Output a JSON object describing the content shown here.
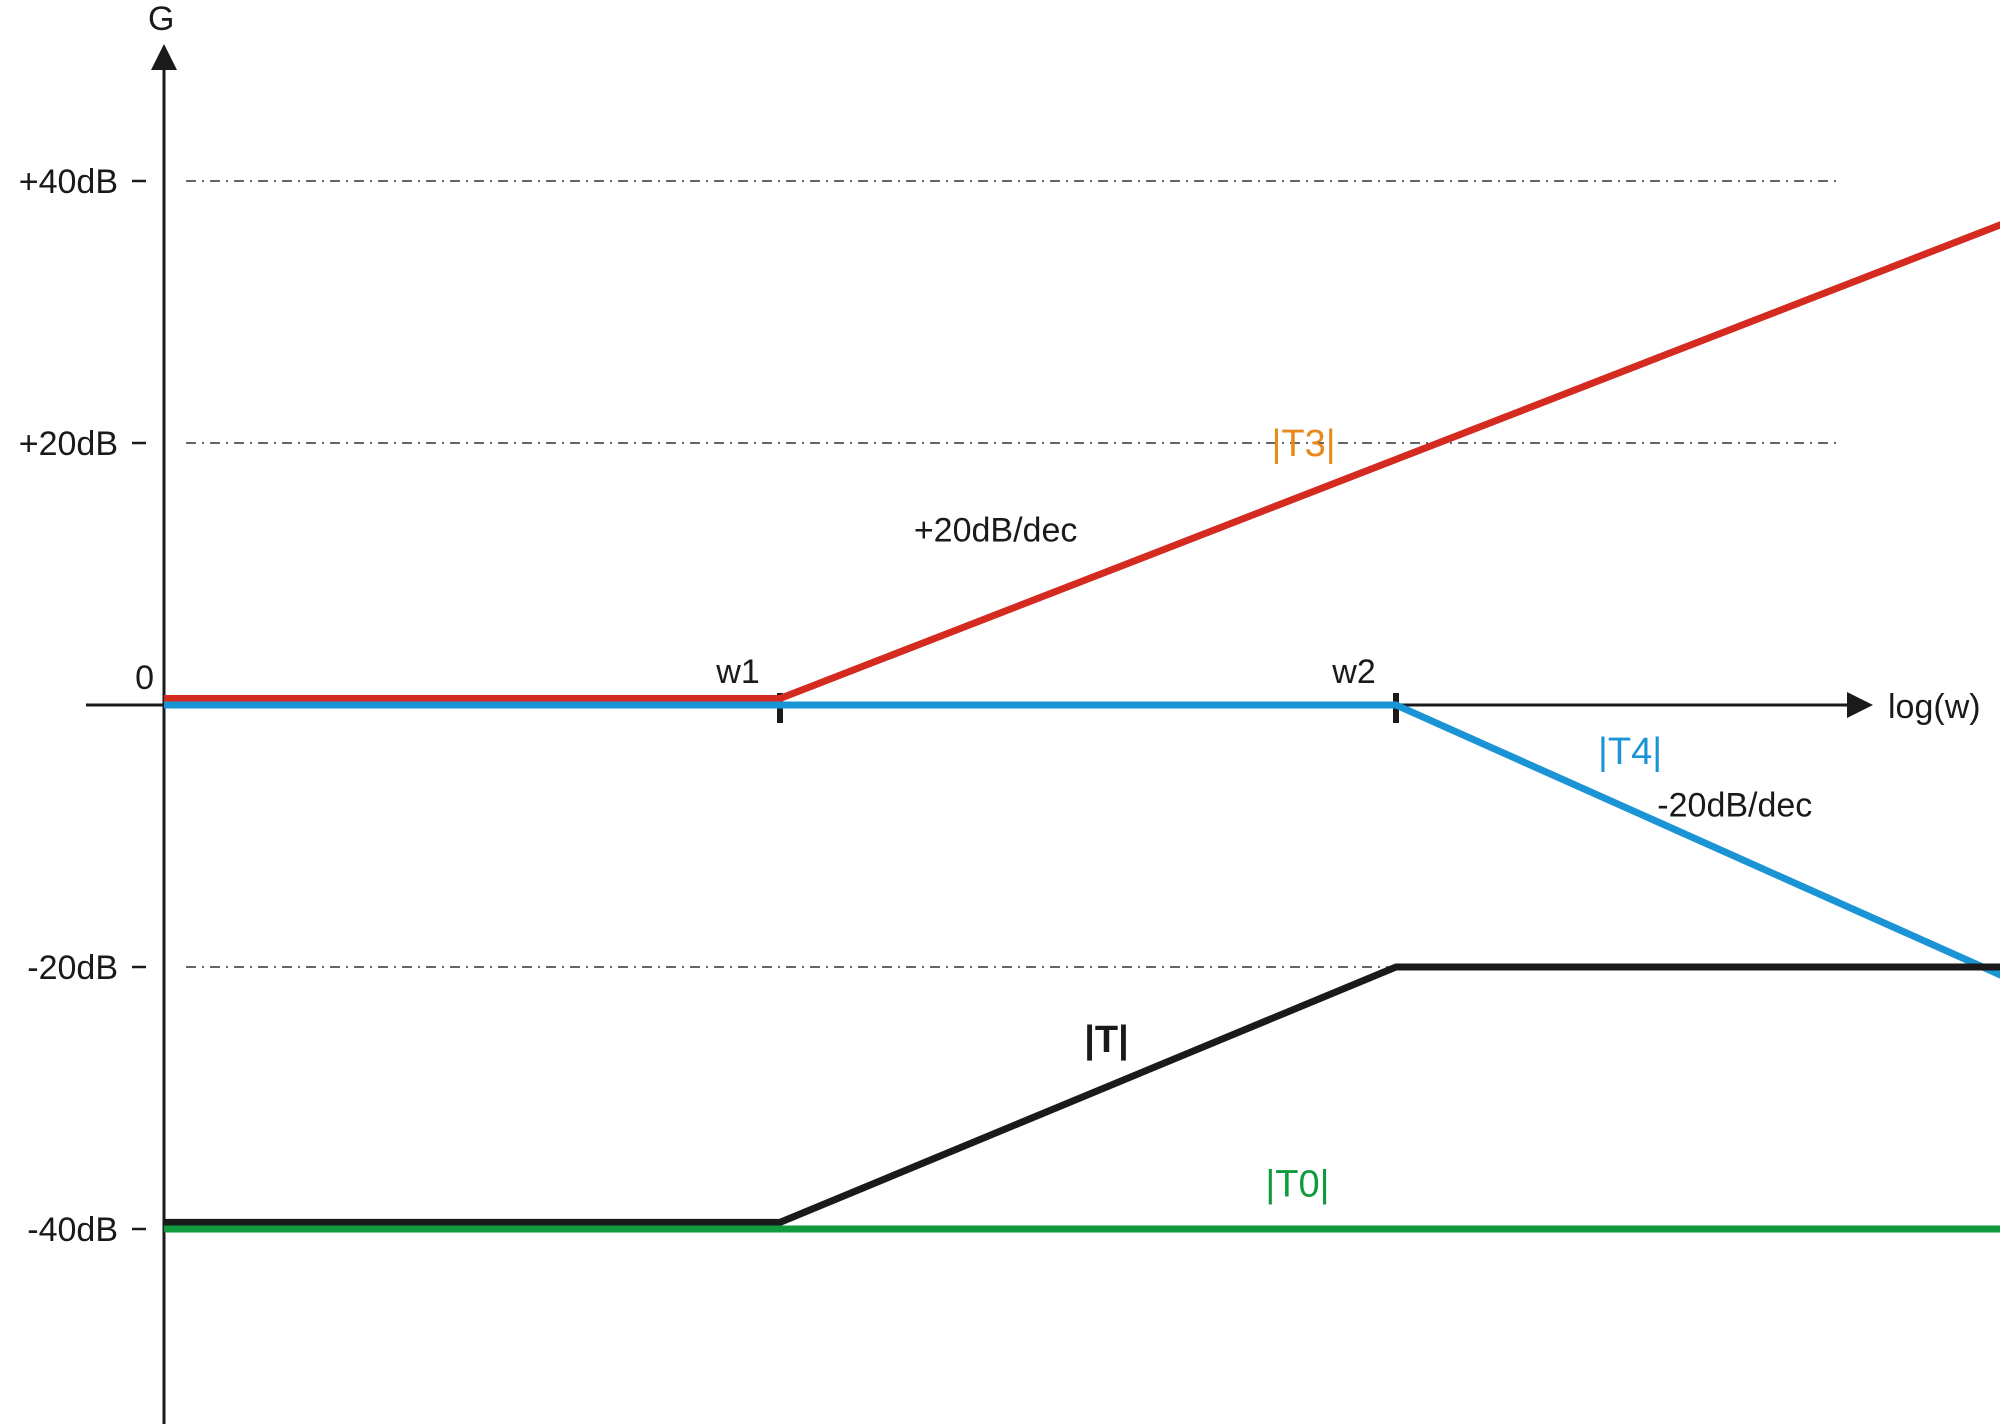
{
  "chart_data": {
    "type": "line",
    "title": "",
    "xlabel": "log(w)",
    "ylabel": "G",
    "xlim": [
      0,
      3.2
    ],
    "ylim": [
      -53,
      48
    ],
    "grid": "dash-dot at labeled levels",
    "yticks": [
      {
        "value": 40,
        "label": "+40dB"
      },
      {
        "value": 20,
        "label": "+20dB"
      },
      {
        "value": 0,
        "label": "0"
      },
      {
        "value": -20,
        "label": "-20dB"
      },
      {
        "value": -40,
        "label": "-40dB"
      }
    ],
    "gridlines": [
      40,
      20,
      -20
    ],
    "breakpoints": [
      {
        "x": 1,
        "label": "w1"
      },
      {
        "x": 2,
        "label": "w2"
      }
    ],
    "series": [
      {
        "name": "|T3|",
        "color": "#d42a20",
        "x": [
          0,
          1,
          3
        ],
        "y": [
          0.5,
          0.5,
          37
        ]
      },
      {
        "name": "|T4|",
        "color": "#1b94d6",
        "x": [
          0,
          2,
          3
        ],
        "y": [
          0,
          0,
          -21
        ]
      },
      {
        "name": "|T|",
        "color": "#1a1a1a",
        "x": [
          0,
          1,
          2,
          3
        ],
        "y": [
          -39.5,
          -39.5,
          -20,
          -20
        ]
      },
      {
        "name": "|T0|",
        "color": "#0f9a3e",
        "x": [
          0,
          3
        ],
        "y": [
          -40,
          -40
        ]
      }
    ],
    "annotations": [
      {
        "text": "+20dB/dec",
        "x": 1.35,
        "y": 12.5,
        "color": "#1a1a1a"
      },
      {
        "text": "-20dB/dec",
        "x": 2.55,
        "y": -8.5,
        "color": "#1a1a1a"
      }
    ],
    "series_labels": [
      {
        "text": "|T3|",
        "x": 1.85,
        "y": 19,
        "color": "#e88a1a",
        "bold": false
      },
      {
        "text": "|T4|",
        "x": 2.38,
        "y": -4.5,
        "color": "#1b94d6",
        "bold": false
      },
      {
        "text": "|T|",
        "x": 1.53,
        "y": -26.5,
        "color": "#1a1a1a",
        "bold": true
      },
      {
        "text": "|T0|",
        "x": 1.84,
        "y": -37.5,
        "color": "#0f9a3e",
        "bold": false
      }
    ]
  }
}
